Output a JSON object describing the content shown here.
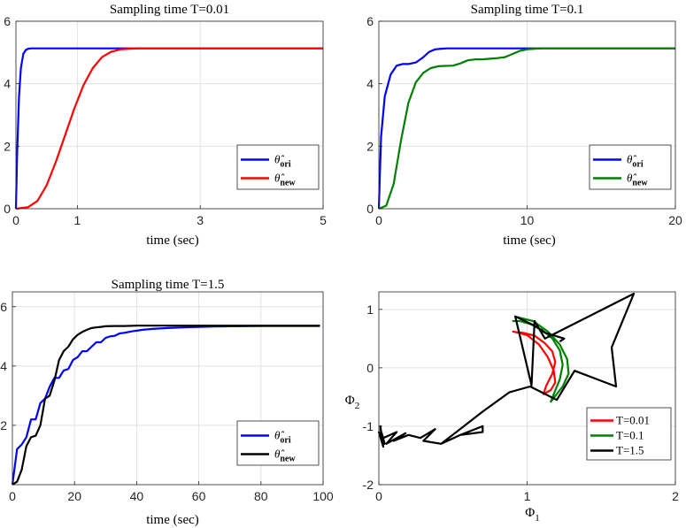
{
  "chart_data": [
    {
      "type": "line",
      "title": "Sampling time T=0.01",
      "xlabel": "time (sec)",
      "ylabel": "",
      "xlim": [
        0,
        5
      ],
      "ylim": [
        0,
        6
      ],
      "xticks": [
        0,
        1,
        3,
        5
      ],
      "yticks": [
        0,
        2,
        4,
        6
      ],
      "grid": true,
      "legend_position": "lower-right",
      "series": [
        {
          "name": "θ̂ ori",
          "color": "#0000ff",
          "x": [
            0,
            0.02,
            0.05,
            0.08,
            0.12,
            0.16,
            0.2,
            0.25,
            0.3,
            0.4,
            5
          ],
          "y": [
            0,
            1.8,
            3.6,
            4.5,
            4.95,
            5.08,
            5.12,
            5.13,
            5.13,
            5.13,
            5.13
          ]
        },
        {
          "name": "θ̂ new",
          "color": "#ff0000",
          "x": [
            0,
            0.2,
            0.35,
            0.5,
            0.65,
            0.8,
            0.95,
            1.1,
            1.25,
            1.4,
            1.55,
            1.7,
            1.85,
            2.0,
            2.2,
            5
          ],
          "y": [
            0,
            0.05,
            0.25,
            0.75,
            1.5,
            2.35,
            3.2,
            3.95,
            4.5,
            4.85,
            5.02,
            5.1,
            5.12,
            5.13,
            5.13,
            5.13
          ]
        }
      ]
    },
    {
      "type": "line",
      "title": "Sampling time T=0.1",
      "xlabel": "time (sec)",
      "ylabel": "",
      "xlim": [
        0,
        20
      ],
      "ylim": [
        0,
        6
      ],
      "xticks": [
        0,
        10,
        20
      ],
      "yticks": [
        0,
        2,
        4,
        6
      ],
      "grid": true,
      "legend_position": "lower-right",
      "series": [
        {
          "name": "θ̂ ori",
          "color": "#0000ff",
          "x": [
            0,
            0.15,
            0.4,
            0.8,
            1.2,
            1.6,
            2.0,
            2.5,
            3.0,
            3.4,
            3.8,
            4.2,
            4.6,
            5.0,
            6,
            8,
            20
          ],
          "y": [
            0,
            2.3,
            3.6,
            4.3,
            4.58,
            4.63,
            4.63,
            4.68,
            4.85,
            5.02,
            5.1,
            5.12,
            5.13,
            5.13,
            5.13,
            5.13,
            5.13
          ]
        },
        {
          "name": "θ̂ new",
          "color": "#008000",
          "x": [
            0,
            0.5,
            1.0,
            1.5,
            2.0,
            2.5,
            3.0,
            3.5,
            4.0,
            4.5,
            5.0,
            5.5,
            6.0,
            6.5,
            7.0,
            7.5,
            8.0,
            8.5,
            9.0,
            9.5,
            10.0,
            10.5,
            11.0,
            12,
            14,
            20
          ],
          "y": [
            0,
            0.1,
            0.8,
            2.2,
            3.4,
            4.05,
            4.35,
            4.5,
            4.56,
            4.57,
            4.58,
            4.65,
            4.75,
            4.78,
            4.78,
            4.8,
            4.82,
            4.85,
            4.95,
            5.05,
            5.1,
            5.12,
            5.13,
            5.13,
            5.13,
            5.13
          ]
        }
      ]
    },
    {
      "type": "line",
      "title": "Sampling time T=1.5",
      "xlabel": "time (sec)",
      "ylabel": "",
      "xlim": [
        0,
        100
      ],
      "ylim": [
        0,
        6.5
      ],
      "xticks": [
        0,
        20,
        40,
        60,
        80,
        100
      ],
      "yticks": [
        2,
        4,
        6
      ],
      "grid": true,
      "legend_position": "lower-right",
      "series": [
        {
          "name": "θ̂ ori",
          "color": "#0000ff",
          "x": [
            0,
            1.5,
            3,
            4.5,
            6,
            7.5,
            9,
            10.5,
            12,
            13.5,
            15,
            16.5,
            18,
            19.5,
            21,
            22.5,
            24,
            25.5,
            27,
            28.5,
            30,
            31.5,
            33,
            34.5,
            36,
            37.5,
            39,
            40.5,
            42,
            45,
            50,
            55,
            60,
            65,
            70,
            80,
            90,
            99
          ],
          "y": [
            0,
            1.2,
            1.35,
            1.6,
            2.2,
            2.2,
            2.75,
            2.9,
            3.3,
            3.6,
            3.6,
            3.85,
            3.9,
            4.2,
            4.3,
            4.5,
            4.5,
            4.65,
            4.8,
            4.8,
            4.95,
            5.0,
            5.02,
            5.1,
            5.12,
            5.15,
            5.18,
            5.2,
            5.22,
            5.25,
            5.28,
            5.3,
            5.32,
            5.33,
            5.34,
            5.35,
            5.35,
            5.35
          ]
        },
        {
          "name": "θ̂ new",
          "color": "#000000",
          "x": [
            0,
            1.5,
            3,
            4.5,
            6,
            7.5,
            9,
            10.5,
            12,
            13.5,
            15,
            16.5,
            18,
            19.5,
            21,
            22.5,
            24,
            25.5,
            27,
            28.5,
            30,
            33,
            36,
            40,
            50,
            60,
            80,
            99
          ],
          "y": [
            0,
            0.1,
            0.5,
            1.3,
            1.6,
            1.65,
            2.0,
            2.9,
            3.0,
            3.5,
            4.2,
            4.5,
            4.65,
            4.9,
            5.05,
            5.15,
            5.22,
            5.28,
            5.3,
            5.32,
            5.34,
            5.35,
            5.35,
            5.36,
            5.36,
            5.36,
            5.36,
            5.36
          ]
        }
      ]
    },
    {
      "type": "line",
      "title": "",
      "xlabel": "Φ1",
      "ylabel": "Φ2",
      "xlim": [
        0,
        2
      ],
      "ylim": [
        -2,
        1.3
      ],
      "xticks": [
        0,
        1,
        2
      ],
      "yticks": [
        -2,
        -1,
        0,
        1
      ],
      "grid": true,
      "legend_position": "lower-right",
      "series": [
        {
          "name": "T=0.01",
          "color": "#ff0000",
          "x": [
            0.91,
            1.0,
            1.08,
            1.14,
            1.18,
            1.19,
            1.16,
            1.11,
            1.13,
            1.17,
            1.19,
            1.17,
            1.12,
            1.05,
            0.97,
            0.9
          ],
          "y": [
            0.62,
            0.56,
            0.4,
            0.18,
            -0.05,
            -0.25,
            -0.38,
            -0.45,
            -0.3,
            -0.1,
            0.1,
            0.28,
            0.42,
            0.55,
            0.6,
            0.62
          ]
        },
        {
          "name": "T=0.1",
          "color": "#008000",
          "x": [
            0.93,
            1.04,
            1.14,
            1.22,
            1.27,
            1.28,
            1.24,
            1.16,
            1.18,
            1.22,
            1.24,
            1.22,
            1.17,
            1.1,
            1.02,
            0.95,
            0.9
          ],
          "y": [
            0.87,
            0.8,
            0.62,
            0.4,
            0.15,
            -0.1,
            -0.32,
            -0.58,
            -0.45,
            -0.2,
            0.05,
            0.3,
            0.5,
            0.65,
            0.75,
            0.8,
            0.8
          ]
        },
        {
          "name": "T=1.5",
          "color": "#000000",
          "x": [
            0.02,
            0.01,
            0.03,
            0.0,
            0.04,
            0.01,
            0.03,
            0.12,
            0.05,
            0.18,
            0.1,
            0.2,
            0.28,
            0.38,
            0.3,
            0.42,
            0.55,
            0.7,
            0.7,
            0.55,
            0.42,
            0.7,
            0.88,
            1.02,
            1.2,
            1.32,
            1.6,
            1.57,
            1.72,
            1.12,
            1.05,
            1.03,
            0.92,
            1.05,
            1.12,
            1.25,
            1.22
          ],
          "y": [
            -1.2,
            -1.0,
            -1.35,
            -1.1,
            -1.3,
            -1.05,
            -1.2,
            -1.1,
            -1.3,
            -1.12,
            -1.25,
            -1.15,
            -1.2,
            -1.05,
            -1.25,
            -1.3,
            -1.15,
            -1.1,
            -1.0,
            -1.15,
            -1.3,
            -0.75,
            -0.42,
            -0.32,
            -0.55,
            -0.05,
            -0.32,
            0.35,
            1.27,
            0.5,
            0.8,
            -0.3,
            0.88,
            0.72,
            0.6,
            0.5,
            0.45
          ]
        }
      ]
    }
  ]
}
